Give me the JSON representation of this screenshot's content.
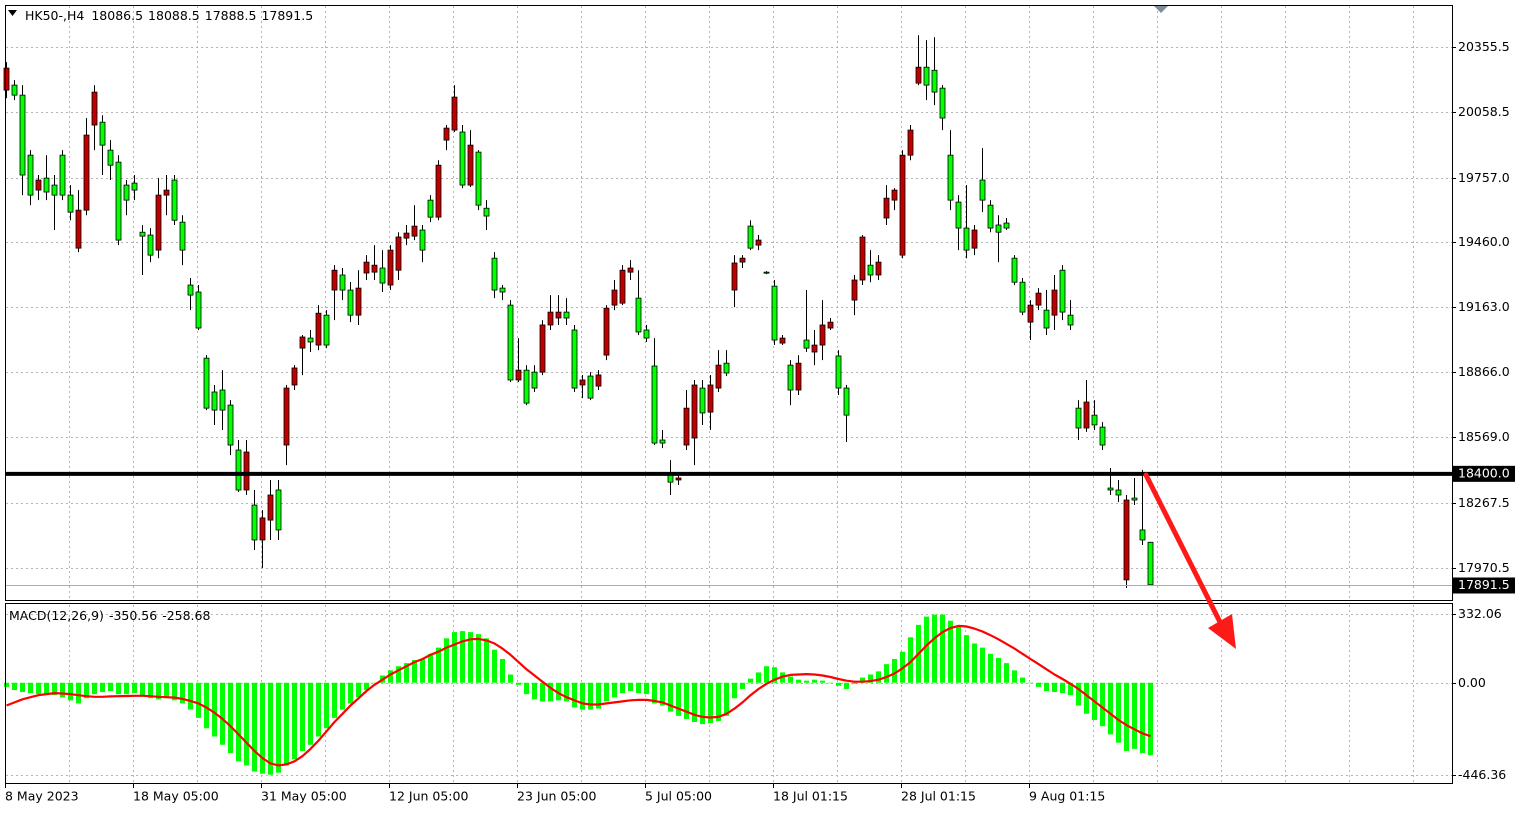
{
  "chart_data": [
    {
      "type": "candlestick",
      "title": "HK50-,H4",
      "categories": [
        "8 May 2023",
        null,
        null,
        null,
        null,
        null,
        null,
        null,
        null,
        null,
        null,
        null,
        null,
        null,
        null,
        null,
        "18 May 05:00",
        null,
        null,
        null,
        null,
        null,
        null,
        null,
        null,
        null,
        null,
        null,
        null,
        null,
        null,
        null,
        "31 May 05:00",
        null,
        null,
        null,
        null,
        null,
        null,
        null,
        null,
        null,
        null,
        null,
        null,
        null,
        null,
        null,
        "12 Jun 05:00",
        null,
        null,
        null,
        null,
        null,
        null,
        null,
        null,
        null,
        null,
        null,
        null,
        null,
        null,
        null,
        "23 Jun 05:00",
        null,
        null,
        null,
        null,
        null,
        null,
        null,
        null,
        null,
        null,
        null,
        null,
        null,
        null,
        null,
        "5 Jul 05:00",
        null,
        null,
        null,
        null,
        null,
        null,
        null,
        null,
        null,
        null,
        null,
        null,
        null,
        null,
        null,
        "18 Jul 01:15",
        null,
        null,
        null,
        null,
        null,
        null,
        null,
        null,
        null,
        null,
        null,
        null,
        null,
        null,
        null,
        "28 Jul 01:15",
        null,
        null,
        null,
        null,
        null,
        null,
        null,
        null,
        null,
        null,
        null,
        null,
        null,
        null,
        null,
        "9 Aug 01:15",
        null,
        null,
        null,
        null,
        null,
        null,
        null,
        null,
        null,
        null,
        null,
        null,
        null,
        null,
        null
      ],
      "open": [
        20158,
        20181,
        20135,
        19860,
        19700,
        19755,
        19723,
        19860,
        19677,
        19434,
        19608,
        19998,
        20011,
        19883,
        19828,
        19723,
        19732,
        19507,
        19494,
        19425,
        19677,
        19746,
        19553,
        19265,
        19233,
        18930,
        18775,
        18784,
        18715,
        18509,
        18326,
        18257,
        18097,
        18188,
        18326,
        18532,
        18807,
        18976,
        19022,
        18990,
        19127,
        19242,
        19311,
        19242,
        19127,
        19320,
        19324,
        19343,
        19265,
        19333,
        19480,
        19489,
        19517,
        19654,
        19576,
        19929,
        19975,
        19966,
        19723,
        19874,
        19617,
        19388,
        19251,
        19173,
        18830,
        18875,
        18866,
        18866,
        19082,
        19114,
        19141,
        19059,
        18807,
        18848,
        18802,
        18944,
        19173,
        19182,
        19324,
        19205,
        19059,
        18894,
        18555,
        18404,
        18372,
        18532,
        18564,
        18793,
        18683,
        18793,
        18907,
        19242,
        19370,
        19535,
        19448,
        19324,
        19260,
        18999,
        18898,
        18784,
        19013,
        18958,
        18990,
        19068,
        18940,
        18793,
        19196,
        19288,
        19356,
        19311,
        19572,
        19654,
        19402,
        19860,
        20190,
        20263,
        20249,
        20167,
        19860,
        19645,
        19526,
        19434,
        19746,
        19631,
        19540,
        19549,
        19388,
        19278,
        19095,
        19173,
        19150,
        19127,
        19333,
        19127,
        18701,
        18610,
        18669,
        18614,
        18335,
        18326,
        17914,
        18289,
        18143,
        18086.5
      ],
      "high": [
        20286,
        20204,
        20181,
        19883,
        19769,
        19860,
        19769,
        19883,
        19723,
        19700,
        20030,
        20181,
        20043,
        19929,
        19860,
        19746,
        19769,
        19540,
        19526,
        19755,
        19769,
        19769,
        19585,
        19297,
        19265,
        18944,
        18807,
        18875,
        18738,
        18555,
        18555,
        18326,
        18234,
        18372,
        18372,
        18807,
        18898,
        19036,
        19059,
        19173,
        19150,
        19356,
        19343,
        19279,
        19333,
        19402,
        19448,
        19425,
        19448,
        19507,
        19540,
        19631,
        19540,
        19677,
        19837,
        19998,
        20181,
        19998,
        19975,
        19883,
        19654,
        19416,
        19265,
        19196,
        19022,
        18898,
        18898,
        19104,
        19219,
        19219,
        19205,
        19082,
        18853,
        18866,
        18875,
        19173,
        19288,
        19356,
        19379,
        19333,
        19082,
        19022,
        18601,
        18463,
        18395,
        18784,
        18830,
        18830,
        18853,
        18967,
        18967,
        19402,
        19402,
        19562,
        19494,
        19329,
        19288,
        19036,
        18921,
        18944,
        19242,
        19059,
        19196,
        19114,
        18967,
        18807,
        19311,
        19494,
        19425,
        19402,
        19723,
        19709,
        19883,
        19998,
        20410,
        20387,
        20401,
        20181,
        19975,
        19677,
        19723,
        19540,
        19892,
        19654,
        19585,
        19572,
        19402,
        19297,
        19196,
        19251,
        19242,
        19311,
        19356,
        19196,
        18738,
        18830,
        18738,
        18637,
        18427,
        18372,
        18303,
        18381,
        18418,
        18088.5
      ],
      "low": [
        20121,
        20112,
        19677,
        19631,
        19654,
        19654,
        19517,
        19654,
        19562,
        19416,
        19585,
        19883,
        19769,
        19746,
        19448,
        19585,
        19654,
        19311,
        19370,
        19388,
        19585,
        19540,
        19356,
        19150,
        19059,
        18692,
        18624,
        18601,
        18486,
        18317,
        18303,
        18051,
        17969,
        18097,
        18097,
        18440,
        18784,
        18852,
        18958,
        18967,
        18976,
        19104,
        19196,
        19095,
        19082,
        19288,
        19288,
        19233,
        19242,
        19288,
        19448,
        19471,
        19370,
        19553,
        19562,
        19883,
        19966,
        19709,
        19714,
        19608,
        19517,
        19205,
        19196,
        18820,
        18820,
        18715,
        18775,
        18852,
        19059,
        19082,
        19082,
        18775,
        18747,
        18738,
        18784,
        18921,
        19150,
        19173,
        19288,
        19036,
        19004,
        18532,
        18518,
        18303,
        18349,
        18509,
        18440,
        18624,
        18601,
        18775,
        18848,
        19164,
        19343,
        19425,
        19425,
        19315,
        18990,
        18990,
        18715,
        18761,
        18958,
        18898,
        18921,
        19059,
        18761,
        18546,
        19127,
        19265,
        19278,
        19288,
        19540,
        19608,
        19388,
        19837,
        20181,
        20112,
        20089,
        19975,
        19608,
        19425,
        19388,
        19402,
        19599,
        19507,
        19370,
        19517,
        19265,
        19127,
        19013,
        19150,
        19036,
        19059,
        19104,
        19059,
        18555,
        18592,
        18601,
        18509,
        18303,
        18271,
        17877,
        18257,
        18074,
        17888.5
      ],
      "close": [
        20259,
        20135,
        19769,
        19677,
        19746,
        19691,
        19677,
        19677,
        19599,
        19608,
        19952,
        20149,
        19906,
        19814,
        19471,
        19654,
        19700,
        19489,
        19402,
        19677,
        19700,
        19562,
        19425,
        19219,
        19068,
        18701,
        18692,
        18692,
        18532,
        18326,
        18500,
        18097,
        18198,
        18303,
        18143,
        18793,
        18885,
        19027,
        19004,
        19136,
        18990,
        19333,
        19242,
        19127,
        19251,
        19370,
        19356,
        19274,
        19425,
        19485,
        19503,
        19535,
        19425,
        19576,
        19814,
        19984,
        20126,
        19723,
        19906,
        19631,
        19581,
        19242,
        19233,
        18830,
        18875,
        18724,
        18793,
        19082,
        19141,
        19141,
        19114,
        18793,
        18830,
        18747,
        18853,
        19159,
        19242,
        19333,
        19343,
        19050,
        19022,
        18541,
        18541,
        18362,
        18381,
        18701,
        18807,
        18679,
        18807,
        18898,
        18862,
        19366,
        19388,
        19434,
        19471,
        19320,
        19013,
        19022,
        18784,
        18907,
        18976,
        18990,
        19082,
        19095,
        18793,
        18669,
        19288,
        19485,
        19311,
        19370,
        19663,
        19700,
        19860,
        19975,
        20263,
        20181,
        20149,
        20030,
        19654,
        19526,
        19425,
        19517,
        19654,
        19526,
        19507,
        19526,
        19278,
        19141,
        19173,
        19228,
        19068,
        19242,
        19141,
        19082,
        18610,
        18729,
        18624,
        18532,
        18326,
        18303,
        18280,
        18280,
        18097,
        17891.5
      ],
      "up_color": "#c00000",
      "down_color": "#00ff00",
      "ylim": [
        17822,
        20548
      ],
      "yticks": [
        20355.5,
        20058.5,
        {
          "value": 19757,
          "label": "19757.0"
        },
        {
          "value": 19460,
          "label": "19460.0"
        },
        {
          "value": 19163,
          "label": "19163.0"
        },
        {
          "value": 18866,
          "label": "18866.0"
        },
        {
          "value": 18569,
          "label": "18569.0"
        },
        18267.5,
        17970.5
      ],
      "hline": {
        "value": 18400,
        "label": "18400.0"
      },
      "grid": true
    },
    {
      "type": "macd",
      "title": "MACD(12,26,9)",
      "histogram": {
        "color": "#00ff00",
        "values": [
          -20,
          -35,
          -45,
          -50,
          -55,
          -55,
          -60,
          -70,
          -85,
          -100,
          -75,
          -55,
          -45,
          -40,
          -55,
          -55,
          -50,
          -60,
          -75,
          -80,
          -75,
          -85,
          -100,
          -130,
          -170,
          -220,
          -260,
          -300,
          -340,
          -380,
          -400,
          -430,
          -440,
          -445,
          -435,
          -400,
          -370,
          -330,
          -300,
          -260,
          -220,
          -170,
          -130,
          -100,
          -70,
          -35,
          0,
          35,
          60,
          80,
          95,
          110,
          115,
          140,
          170,
          215,
          245,
          250,
          245,
          235,
          215,
          160,
          115,
          40,
          -10,
          -55,
          -80,
          -90,
          -90,
          -85,
          -90,
          -120,
          -130,
          -130,
          -125,
          -90,
          -70,
          -50,
          -40,
          -50,
          -55,
          -100,
          -110,
          -140,
          -160,
          -175,
          -190,
          -200,
          -195,
          -185,
          -160,
          -75,
          -30,
          20,
          50,
          80,
          75,
          50,
          30,
          15,
          10,
          15,
          10,
          0,
          -15,
          -30,
          -5,
          25,
          40,
          55,
          90,
          115,
          150,
          220,
          280,
          320,
          330,
          330,
          300,
          270,
          230,
          190,
          170,
          140,
          120,
          95,
          60,
          25,
          0,
          -20,
          -40,
          -45,
          -50,
          -60,
          -110,
          -150,
          -180,
          -210,
          -250,
          -290,
          -330,
          -320,
          -340,
          -350.56
        ]
      },
      "signal": {
        "color": "#ff0000",
        "values": [
          -110,
          -95,
          -80,
          -70,
          -60,
          -55,
          -50,
          -52,
          -55,
          -60,
          -65,
          -68,
          -68,
          -66,
          -65,
          -64,
          -63,
          -63,
          -65,
          -68,
          -70,
          -72,
          -78,
          -88,
          -100,
          -120,
          -145,
          -175,
          -210,
          -250,
          -290,
          -330,
          -365,
          -390,
          -400,
          -395,
          -380,
          -355,
          -320,
          -280,
          -235,
          -190,
          -150,
          -110,
          -75,
          -40,
          -10,
          15,
          40,
          60,
          80,
          100,
          115,
          135,
          150,
          170,
          185,
          200,
          210,
          212,
          205,
          190,
          165,
          135,
          100,
          65,
          35,
          5,
          -25,
          -50,
          -70,
          -85,
          -100,
          -105,
          -105,
          -100,
          -95,
          -90,
          -85,
          -83,
          -83,
          -88,
          -95,
          -110,
          -125,
          -140,
          -155,
          -165,
          -168,
          -165,
          -150,
          -125,
          -95,
          -60,
          -30,
          -5,
          15,
          30,
          38,
          40,
          42,
          40,
          35,
          28,
          18,
          10,
          5,
          5,
          8,
          15,
          28,
          45,
          70,
          100,
          140,
          180,
          215,
          245,
          265,
          275,
          272,
          262,
          248,
          230,
          210,
          188,
          165,
          140,
          115,
          90,
          65,
          40,
          18,
          -5,
          -30,
          -60,
          -90,
          -120,
          -150,
          -180,
          -205,
          -225,
          -245,
          -258.68
        ]
      },
      "ylim": [
        -485,
        381
      ],
      "yticks": [
        332.06,
        {
          "value": 0,
          "label": "0.00"
        },
        -446.36
      ],
      "grid": true
    }
  ]
}
